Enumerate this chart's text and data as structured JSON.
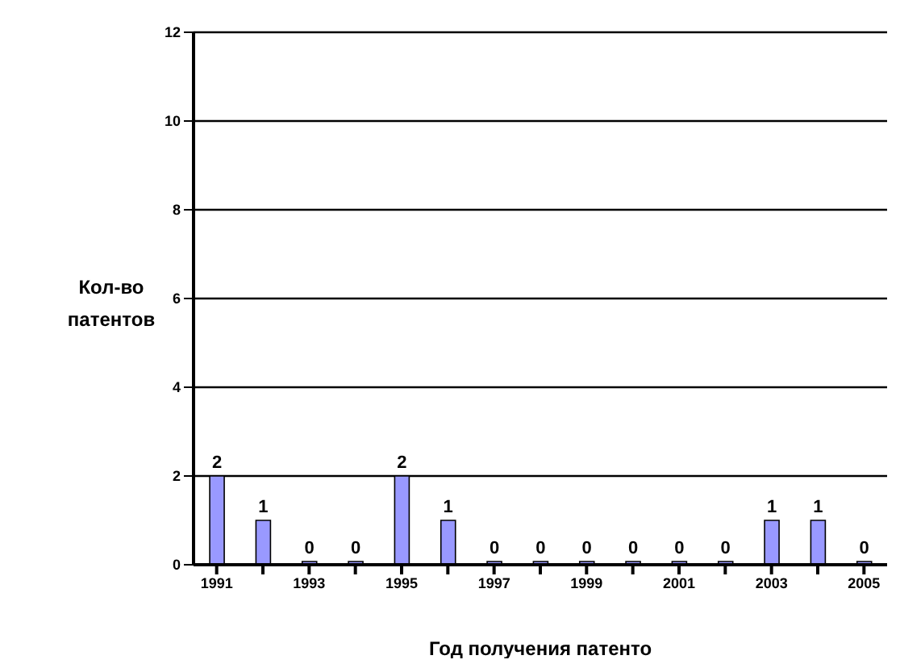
{
  "chart_data": {
    "type": "bar",
    "xlabel": "Год получения патенто",
    "ylabel": "Кол-во патентов",
    "categories": [
      "1991",
      null,
      "1993",
      null,
      "1995",
      null,
      "1997",
      null,
      "1999",
      null,
      "2001",
      null,
      "2003",
      null,
      "2005"
    ],
    "values": [
      2,
      1,
      0,
      0,
      2,
      1,
      0,
      0,
      0,
      0,
      0,
      0,
      1,
      1,
      0
    ],
    "color": "#9999ff",
    "ylim": [
      0,
      12
    ],
    "yticks": [
      0,
      2,
      4,
      6,
      8,
      10,
      12
    ],
    "grid": "y",
    "data_labels": true
  }
}
